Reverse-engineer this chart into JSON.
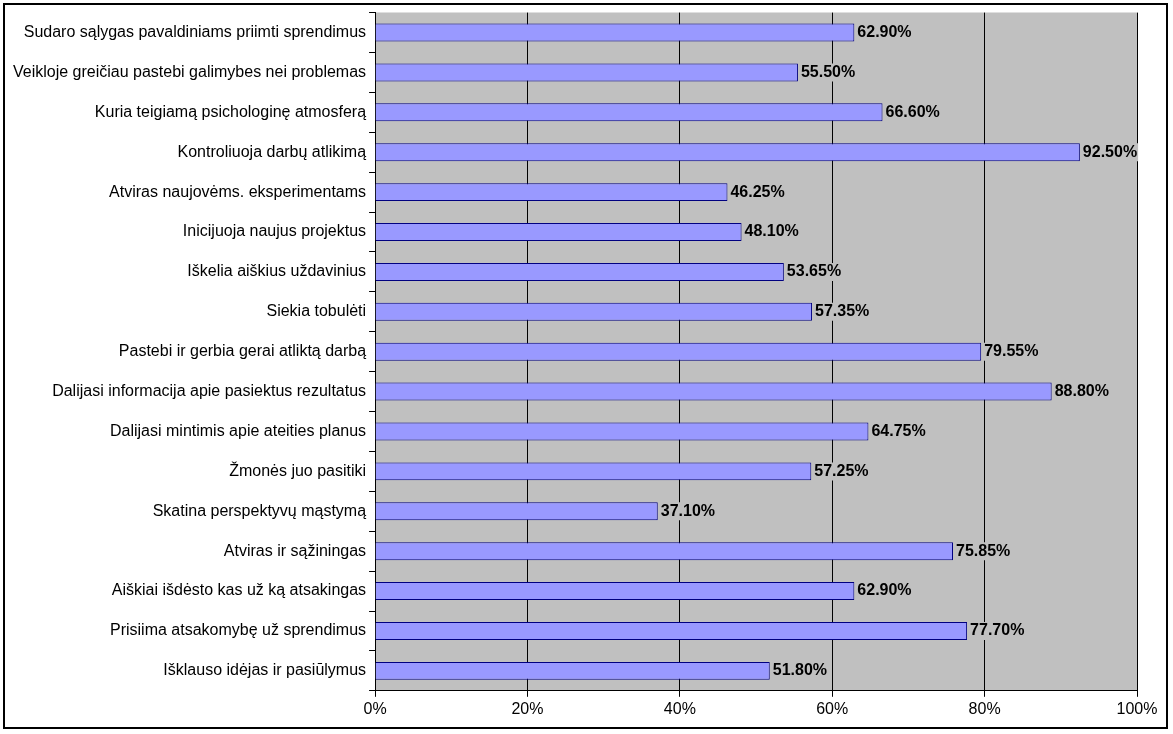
{
  "chart_data": {
    "type": "bar",
    "orientation": "horizontal",
    "categories": [
      "Sudaro sąlygas pavaldiniams priimti sprendimus",
      "Veikloje greičiau pastebi galimybes nei problemas",
      "Kuria teigiamą psichologinę atmosferą",
      "Kontroliuoja darbų atlikimą",
      "Atviras naujovėms. eksperimentams",
      "Inicijuoja naujus projektus",
      "Iškelia aiškius uždavinius",
      "Siekia tobulėti",
      "Pastebi ir gerbia gerai atliktą darbą",
      "Dalijasi informacija apie pasiektus rezultatus",
      "Dalijasi mintimis apie ateities planus",
      "Žmonės juo pasitiki",
      "Skatina perspektyvų mąstymą",
      "Atviras ir sąžiningas",
      "Aiškiai išdėsto kas už ką atsakingas",
      "Prisiima atsakomybę už sprendimus",
      "Išklauso idėjas ir pasiūlymus"
    ],
    "values": [
      62.9,
      55.5,
      66.6,
      92.5,
      46.25,
      48.1,
      53.65,
      57.35,
      79.55,
      88.8,
      64.75,
      57.25,
      37.1,
      75.85,
      62.9,
      77.7,
      51.8
    ],
    "value_labels": [
      "62.90%",
      "55.50%",
      "66.60%",
      "92.50%",
      "46.25%",
      "48.10%",
      "53.65%",
      "57.35%",
      "79.55%",
      "88.80%",
      "64.75%",
      "57.25%",
      "37.10%",
      "75.85%",
      "62.90%",
      "77.70%",
      "51.80%"
    ],
    "color": "#9999ff",
    "xlim": [
      0,
      100
    ],
    "xticks": [
      {
        "value": 0,
        "label": "0%"
      },
      {
        "value": 20,
        "label": "20%"
      },
      {
        "value": 40,
        "label": "40%"
      },
      {
        "value": 60,
        "label": "60%"
      },
      {
        "value": 80,
        "label": "80%"
      },
      {
        "value": 100,
        "label": "100%"
      }
    ],
    "grid": "x",
    "legend": false
  }
}
